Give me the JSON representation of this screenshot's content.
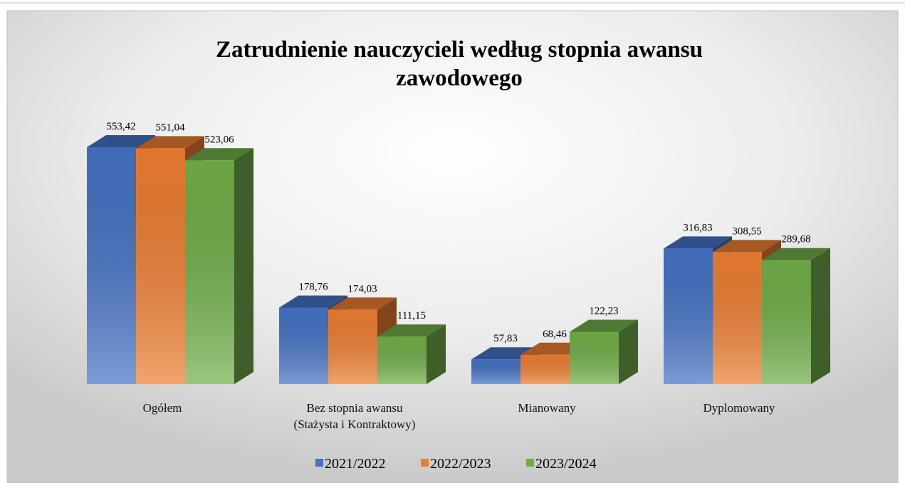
{
  "chart_data": {
    "type": "bar3d",
    "title": "Zatrudnienie nauczycieli według stopnia awansu zawodowego",
    "categories": [
      "Ogółem",
      "Bez stopnia awansu (Stażysta i Kontraktowy)",
      "Mianowany",
      "Dyplomowany"
    ],
    "series": [
      {
        "name": "2021/2022",
        "color": "#4472c4",
        "values": [
          553.42,
          178.76,
          57.83,
          316.83
        ],
        "value_labels": [
          "553,42",
          "178,76",
          "57,83",
          "316,83"
        ]
      },
      {
        "name": "2022/2023",
        "color": "#ed7d31",
        "values": [
          551.04,
          174.03,
          68.46,
          308.55
        ],
        "value_labels": [
          "551,04",
          "174,03",
          "68,46",
          "308,55"
        ]
      },
      {
        "name": "2023/2024",
        "color": "#70ad47",
        "values": [
          523.06,
          111.15,
          122.23,
          289.68
        ],
        "value_labels": [
          "523,06",
          "111,15",
          "122,23",
          "289,68"
        ]
      }
    ],
    "legend": "bottom"
  }
}
